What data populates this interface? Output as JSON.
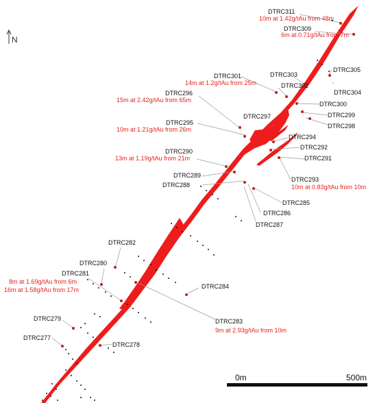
{
  "north_arrow": {
    "label": "N"
  },
  "scale_bar": {
    "start_label": "0m",
    "end_label": "500m"
  },
  "colors": {
    "vein": "#ee1c1c",
    "collar": "#c0201c",
    "result_text": "#e8201c",
    "label_text": "#111111",
    "leader": "#9a9a9a"
  },
  "holes": [
    {
      "id": "DTRC311",
      "result": "10m at 1.42g/tAu from 48m"
    },
    {
      "id": "DTRC309",
      "result": "6m at 0.71g/tAu from 7m"
    },
    {
      "id": "DTRC305",
      "result": ""
    },
    {
      "id": "DTRC303",
      "result": ""
    },
    {
      "id": "DTRC302",
      "result": ""
    },
    {
      "id": "DTRC304",
      "result": ""
    },
    {
      "id": "DTRC301",
      "result": "14m at 1.2g/tAu from 25m"
    },
    {
      "id": "DTRC296",
      "result": "15m at 2.42g/tAu from 65m"
    },
    {
      "id": "DTRC300",
      "result": ""
    },
    {
      "id": "DTRC299",
      "result": ""
    },
    {
      "id": "DTRC298",
      "result": ""
    },
    {
      "id": "DTRC297",
      "result": ""
    },
    {
      "id": "DTRC295",
      "result": "10m at 1.21g/tAu from 26m"
    },
    {
      "id": "DTRC294",
      "result": ""
    },
    {
      "id": "DTRC292",
      "result": ""
    },
    {
      "id": "DTRC291",
      "result": ""
    },
    {
      "id": "DTRC290",
      "result": "13m at 1.19g/tAu from 21m"
    },
    {
      "id": "DTRC293",
      "result": "10m at 0.83g/tAu from 10m"
    },
    {
      "id": "DTRC289",
      "result": ""
    },
    {
      "id": "DTRC288",
      "result": ""
    },
    {
      "id": "DTRC285",
      "result": ""
    },
    {
      "id": "DTRC286",
      "result": ""
    },
    {
      "id": "DTRC287",
      "result": ""
    },
    {
      "id": "DTRC282",
      "result": ""
    },
    {
      "id": "DTRC280",
      "result": ""
    },
    {
      "id": "DTRC281",
      "result": "8m at 1.69g/tAu from 6m"
    },
    {
      "id": "DTRC281b",
      "result": "16m at 1.58g/tAu from 17m"
    },
    {
      "id": "DTRC284",
      "result": ""
    },
    {
      "id": "DTRC283",
      "result": "9m at 2.93g/tAu from 10m"
    },
    {
      "id": "DTRC279",
      "result": ""
    },
    {
      "id": "DTRC277",
      "result": ""
    },
    {
      "id": "DTRC278",
      "result": ""
    }
  ],
  "labels": {
    "DTRC311": "DTRC311",
    "DTRC309": "DTRC309",
    "DTRC305": "DTRC305",
    "DTRC303": "DTRC303",
    "DTRC302": "DTRC302",
    "DTRC304": "DTRC304",
    "DTRC301": "DTRC301",
    "DTRC296": "DTRC296",
    "DTRC300": "DTRC300",
    "DTRC299": "DTRC299",
    "DTRC298": "DTRC298",
    "DTRC297": "DTRC297",
    "DTRC295": "DTRC295",
    "DTRC294": "DTRC294",
    "DTRC292": "DTRC292",
    "DTRC291": "DTRC291",
    "DTRC290": "DTRC290",
    "DTRC293": "DTRC293",
    "DTRC289": "DTRC289",
    "DTRC288": "DTRC288",
    "DTRC285": "DTRC285",
    "DTRC286": "DTRC286",
    "DTRC287": "DTRC287",
    "DTRC282": "DTRC282",
    "DTRC280": "DTRC280",
    "DTRC281": "DTRC281",
    "DTRC284": "DTRC284",
    "DTRC283": "DTRC283",
    "DTRC279": "DTRC279",
    "DTRC277": "DTRC277",
    "DTRC278": "DTRC278"
  },
  "results": {
    "DTRC311": "10m at 1.42g/tAu from 48m",
    "DTRC309": "6m at 0.71g/tAu from 7m",
    "DTRC301": "14m at 1.2g/tAu from 25m",
    "DTRC296": "15m at 2.42g/tAu from 65m",
    "DTRC295": "10m at 1.21g/tAu from 26m",
    "DTRC290": "13m at 1.19g/tAu from 21m",
    "DTRC293": "10m at 0.83g/tAu from 10m",
    "DTRC281a": "8m at 1.69g/tAu from 6m",
    "DTRC281b": "16m at 1.58g/tAu from 17m",
    "DTRC283": "9m at 2.93g/tAu from 10m"
  }
}
